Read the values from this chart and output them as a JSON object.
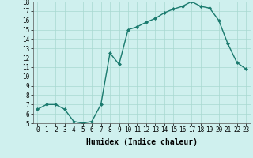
{
  "x": [
    0,
    1,
    2,
    3,
    4,
    5,
    6,
    7,
    8,
    9,
    10,
    11,
    12,
    13,
    14,
    15,
    16,
    17,
    18,
    19,
    20,
    21,
    22,
    23
  ],
  "y": [
    6.5,
    7.0,
    7.0,
    6.5,
    5.2,
    5.0,
    5.2,
    7.0,
    12.5,
    11.3,
    15.0,
    15.3,
    15.8,
    16.2,
    16.8,
    17.2,
    17.5,
    18.0,
    17.5,
    17.3,
    16.0,
    13.5,
    11.5,
    10.8
  ],
  "line_color": "#1a7a6e",
  "marker": "D",
  "marker_size": 2.0,
  "bg_color": "#cff0ee",
  "grid_color": "#a8d8d0",
  "xlabel": "Humidex (Indice chaleur)",
  "xlim": [
    -0.5,
    23.5
  ],
  "ylim": [
    5,
    18
  ],
  "yticks": [
    5,
    6,
    7,
    8,
    9,
    10,
    11,
    12,
    13,
    14,
    15,
    16,
    17,
    18
  ],
  "xticks": [
    0,
    1,
    2,
    3,
    4,
    5,
    6,
    7,
    8,
    9,
    10,
    11,
    12,
    13,
    14,
    15,
    16,
    17,
    18,
    19,
    20,
    21,
    22,
    23
  ],
  "tick_fontsize": 5.5,
  "label_fontsize": 7,
  "linewidth": 1.0
}
